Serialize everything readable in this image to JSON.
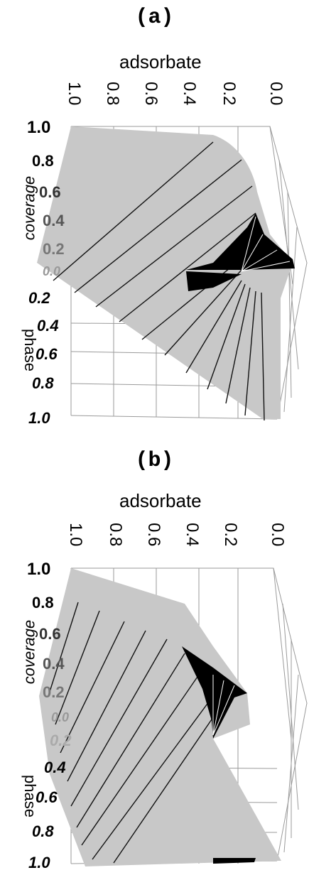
{
  "chart_data": [
    {
      "type": "surface",
      "panel": "(a)",
      "axis_top_title": "adsorbate",
      "axis_top_ticks": [
        "1.0",
        "0.8",
        "0.6",
        "0.4",
        "0.2",
        "0.0"
      ],
      "coverage_title": "coverage",
      "phase_title": "phase",
      "left_ticks": [
        "1.0",
        "0.8",
        "0.6",
        "0.4",
        "0.2",
        "0.0"
      ],
      "lower_left_ticks": [
        "0.2",
        "0.4",
        "0.6",
        "0.8",
        "1.0"
      ],
      "colors": {
        "surface": "#c8c8c8",
        "lines": "#111111",
        "spike": "#000000",
        "grid": "#999999"
      }
    },
    {
      "type": "surface",
      "panel": "(b)",
      "axis_top_title": "adsorbate",
      "axis_top_ticks": [
        "1.0",
        "0.8",
        "0.6",
        "0.4",
        "0.2",
        "0.0"
      ],
      "coverage_title": "coverage",
      "phase_title": "phase",
      "left_ticks": [
        "1.0",
        "0.8",
        "0.6",
        "0.4",
        "0.2",
        "0.0"
      ],
      "lower_left_ticks": [
        "0.2",
        "0.4",
        "0.6",
        "0.8",
        "1.0"
      ],
      "colors": {
        "surface": "#c8c8c8",
        "lines": "#111111",
        "spike": "#000000",
        "grid": "#999999"
      }
    }
  ]
}
